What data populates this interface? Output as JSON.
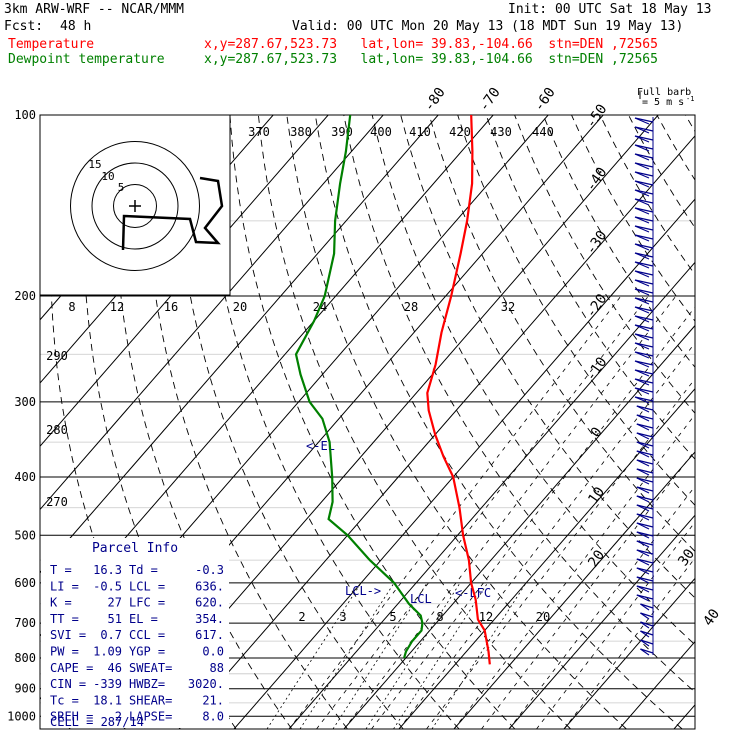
{
  "header": {
    "model": "3km ARW-WRF -- NCAR/MMM",
    "init": "Init: 00 UTC Sat 18 May 13",
    "fcst_label": "Fcst:",
    "fcst_value": "48 h",
    "valid": "Valid: 00 UTC Mon 20 May 13 (18 MDT Sun 19 May 13)",
    "temperature_label": "Temperature",
    "temperature_loc": "x,y=287.67,523.73   lat,lon= 39.83,-104.66  stn=DEN ,72565",
    "dewpoint_label": "Dewpoint temperature",
    "dewpoint_loc": "x,y=287.67,523.73   lat,lon= 39.83,-104.66  stn=DEN ,72565",
    "barb_key_line1": "Full barb",
    "barb_key_line2": "= 5 m s",
    "barb_key_exp": "-1"
  },
  "colors": {
    "temperature": "#ff0000",
    "dewpoint": "#008000",
    "parcel_text": "#00008b",
    "frame": "#000000"
  },
  "chart_data": {
    "type": "line",
    "subtype": "skew-T log-p sounding",
    "y_axis": "pressure (hPa), log scale",
    "pressure_ticks": [
      100,
      200,
      300,
      400,
      500,
      600,
      700,
      800,
      900,
      1000
    ],
    "isotherm_labels": [
      -80,
      -70,
      -60,
      -50,
      -40,
      -30,
      -20,
      -10,
      0,
      10,
      20,
      30,
      40
    ],
    "theta_labels": [
      370,
      380,
      390,
      400,
      410,
      420,
      430,
      440
    ],
    "theta_left_labels": [
      290,
      280,
      270
    ],
    "mixing_ratio_labels": [
      "2",
      "3",
      "5",
      "8",
      "12",
      "20"
    ],
    "hodograph_speed_labels": [
      "8",
      "12",
      "16",
      "20",
      "24",
      "28",
      "32"
    ],
    "hodograph_ring_labels": [
      "15",
      "10",
      "5"
    ],
    "hodograph_units": "kts",
    "series": [
      {
        "name": "Temperature",
        "color": "#ff0000",
        "points": [
          {
            "p": 820,
            "t": 16.3
          },
          {
            "p": 780,
            "t": 14.0
          },
          {
            "p": 720,
            "t": 10.0
          },
          {
            "p": 690,
            "t": 7.0
          },
          {
            "p": 640,
            "t": 3.5
          },
          {
            "p": 600,
            "t": 0.0
          },
          {
            "p": 550,
            "t": -4.0
          },
          {
            "p": 500,
            "t": -9.0
          },
          {
            "p": 450,
            "t": -14.0
          },
          {
            "p": 400,
            "t": -20.0
          },
          {
            "p": 370,
            "t": -25.0
          },
          {
            "p": 340,
            "t": -30.0
          },
          {
            "p": 310,
            "t": -35.0
          },
          {
            "p": 290,
            "t": -38.0
          },
          {
            "p": 260,
            "t": -41.0
          },
          {
            "p": 230,
            "t": -45.0
          },
          {
            "p": 200,
            "t": -49.0
          },
          {
            "p": 170,
            "t": -54.0
          },
          {
            "p": 150,
            "t": -58.0
          },
          {
            "p": 130,
            "t": -63.0
          },
          {
            "p": 115,
            "t": -68.0
          },
          {
            "p": 100,
            "t": -74.0
          }
        ]
      },
      {
        "name": "Dewpoint temperature",
        "color": "#008000",
        "points": [
          {
            "p": 800,
            "t": -0.3
          },
          {
            "p": 780,
            "t": -1.0
          },
          {
            "p": 750,
            "t": -1.5
          },
          {
            "p": 720,
            "t": -1.5
          },
          {
            "p": 700,
            "t": -2.5
          },
          {
            "p": 680,
            "t": -4.0
          },
          {
            "p": 650,
            "t": -8.0
          },
          {
            "p": 600,
            "t": -14.0
          },
          {
            "p": 550,
            "t": -22.0
          },
          {
            "p": 500,
            "t": -30.0
          },
          {
            "p": 470,
            "t": -36.0
          },
          {
            "p": 440,
            "t": -38.0
          },
          {
            "p": 400,
            "t": -42.0
          },
          {
            "p": 350,
            "t": -48.0
          },
          {
            "p": 320,
            "t": -53.0
          },
          {
            "p": 300,
            "t": -58.0
          },
          {
            "p": 270,
            "t": -64.0
          },
          {
            "p": 250,
            "t": -68.0
          },
          {
            "p": 220,
            "t": -70.0
          },
          {
            "p": 200,
            "t": -72.0
          },
          {
            "p": 170,
            "t": -77.0
          },
          {
            "p": 150,
            "t": -82.0
          },
          {
            "p": 130,
            "t": -87.0
          },
          {
            "p": 115,
            "t": -91.0
          },
          {
            "p": 100,
            "t": -96.0
          }
        ]
      }
    ],
    "annotations": [
      "<-EL",
      "LCL->",
      "LCL",
      "<-LFC"
    ]
  },
  "parcel": {
    "title": "Parcel Info",
    "rows": [
      {
        "a": "T  =",
        "av": "16.3",
        "b": "Td =",
        "bv": "-0.3"
      },
      {
        "a": "LI =",
        "av": "-0.5",
        "b": "LCL =",
        "bv": "636."
      },
      {
        "a": "K  =",
        "av": "27",
        "b": "LFC =",
        "bv": "620."
      },
      {
        "a": "TT =",
        "av": "51",
        "b": "EL =",
        "bv": "354."
      },
      {
        "a": "SVI =",
        "av": "0.7",
        "b": "CCL =",
        "bv": "617."
      },
      {
        "a": "PW =",
        "av": "1.09",
        "b": "YGP =",
        "bv": "0.0"
      },
      {
        "a": "CAPE =",
        "av": "46",
        "b": "SWEAT=",
        "bv": "88"
      },
      {
        "a": "CIN =",
        "av": "-339",
        "b": "HWBZ=",
        "bv": "3020."
      },
      {
        "a": "Tc =",
        "av": "18.1",
        "b": "SHEAR=",
        "bv": "21."
      },
      {
        "a": "SREH =",
        "av": "2",
        "b": "LAPSE=",
        "bv": "8.0"
      }
    ],
    "cell": "CELL = 287/14"
  }
}
